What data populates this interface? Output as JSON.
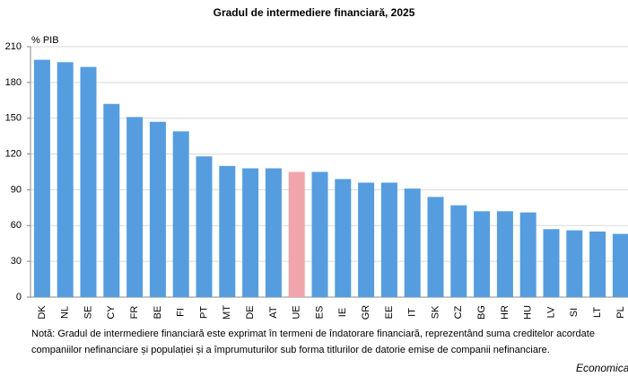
{
  "chart_data": {
    "type": "bar",
    "title": "Gradul de intermediere financiară, 2025",
    "y_label": "% PIB",
    "categories": [
      "DK",
      "NL",
      "SE",
      "CY",
      "FR",
      "BE",
      "FI",
      "PT",
      "MT",
      "DE",
      "AT",
      "UE",
      "ES",
      "IE",
      "GR",
      "EE",
      "IT",
      "SK",
      "CZ",
      "BG",
      "HR",
      "HU",
      "LV",
      "SI",
      "LT",
      "PL"
    ],
    "values": [
      199,
      197,
      193,
      162,
      151,
      147,
      139,
      118,
      110,
      108,
      108,
      105,
      105,
      99,
      96,
      96,
      91,
      84,
      77,
      72,
      72,
      71,
      57,
      56,
      55,
      53
    ],
    "colors": [
      "#559ddf",
      "#559ddf",
      "#559ddf",
      "#559ddf",
      "#559ddf",
      "#559ddf",
      "#559ddf",
      "#559ddf",
      "#559ddf",
      "#559ddf",
      "#559ddf",
      "#f0a5ab",
      "#559ddf",
      "#559ddf",
      "#559ddf",
      "#559ddf",
      "#559ddf",
      "#559ddf",
      "#559ddf",
      "#559ddf",
      "#559ddf",
      "#559ddf",
      "#559ddf",
      "#559ddf",
      "#559ddf",
      "#559ddf"
    ],
    "ylim": [
      0,
      210
    ],
    "yticks": [
      0,
      30,
      60,
      90,
      120,
      150,
      180,
      210
    ],
    "grid": true,
    "note": [
      "Notă: Gradul de intermediere  financiară este exprimat în termeni de îndatorare financiară, reprezentând suma creditelor acordate",
      "companiilor nefinanciare și populației și a împrumuturilor sub forma titlurilor de datorie emise de companii nefinanciare."
    ],
    "source": "Economica"
  }
}
